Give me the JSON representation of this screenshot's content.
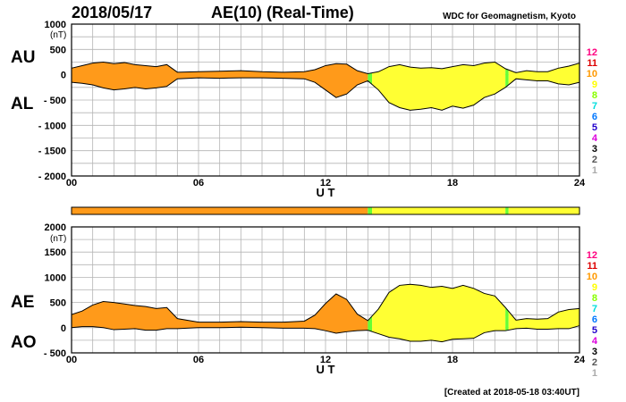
{
  "header": {
    "date": "2018/05/17",
    "title": "AE(10) (Real-Time)",
    "org": "WDC for Geomagnetism, Kyoto"
  },
  "footer": "[Created at 2018-05-18 03:40UT]",
  "colors": {
    "fill_orange": "#ff9a1a",
    "fill_yellow": "#ffff33",
    "fill_green": "#66ff33",
    "grid": "#b4b4b4",
    "trace": "#000000"
  },
  "legend": {
    "labels": [
      "12",
      "11",
      "10",
      "9",
      "8",
      "7",
      "6",
      "5",
      "4",
      "3",
      "2",
      "1"
    ],
    "colors": [
      "#ff0080",
      "#dd0000",
      "#ff9900",
      "#ffff00",
      "#88ff00",
      "#00dddd",
      "#0077ff",
      "#2200cc",
      "#dd00dd",
      "#000000",
      "#555555",
      "#aaaaaa"
    ]
  },
  "chart_data": [
    {
      "type": "area",
      "title": "AU / AL",
      "series_labels": [
        "AU",
        "AL"
      ],
      "unit": "(nT)",
      "xlabel": "U T",
      "xlim": [
        0,
        24
      ],
      "ylim": [
        -2000,
        1000
      ],
      "x_ticks": [
        "00",
        "06",
        "12",
        "18",
        "24"
      ],
      "y_ticks": [
        "1000",
        "500",
        "0",
        "- 500",
        "- 1000",
        "- 1500",
        "- 2000"
      ],
      "x": [
        0,
        0.5,
        1,
        1.5,
        2,
        2.5,
        3,
        3.5,
        4,
        4.5,
        5,
        6,
        7,
        8,
        9,
        10,
        11,
        11.5,
        12,
        12.5,
        13,
        13.5,
        14,
        14.5,
        15,
        15.5,
        16,
        16.5,
        17,
        17.5,
        18,
        18.5,
        19,
        19.5,
        20,
        20.5,
        21,
        21.5,
        22,
        22.5,
        23,
        23.5,
        24
      ],
      "AU": [
        130,
        180,
        230,
        250,
        220,
        240,
        200,
        180,
        160,
        200,
        50,
        60,
        70,
        80,
        60,
        50,
        60,
        100,
        180,
        220,
        210,
        80,
        20,
        60,
        160,
        200,
        150,
        130,
        140,
        120,
        160,
        200,
        180,
        230,
        250,
        120,
        40,
        80,
        60,
        60,
        130,
        170,
        230
      ],
      "AL": [
        -150,
        -170,
        -200,
        -260,
        -300,
        -280,
        -250,
        -280,
        -260,
        -230,
        -80,
        -60,
        -70,
        -60,
        -60,
        -70,
        -80,
        -150,
        -300,
        -450,
        -380,
        -200,
        -120,
        -300,
        -550,
        -650,
        -700,
        -680,
        -650,
        -700,
        -620,
        -660,
        -600,
        -450,
        -380,
        -250,
        -80,
        -100,
        -120,
        -120,
        -180,
        -200,
        -150
      ],
      "source_bar": [
        {
          "from": 0,
          "to": 14,
          "level": "10"
        },
        {
          "from": 14,
          "to": 14.2,
          "level": "8"
        },
        {
          "from": 14.2,
          "to": 20.5,
          "level": "9"
        },
        {
          "from": 20.5,
          "to": 20.65,
          "level": "8"
        },
        {
          "from": 20.65,
          "to": 24,
          "level": "9"
        }
      ]
    },
    {
      "type": "area",
      "title": "AE / AO",
      "series_labels": [
        "AE",
        "AO"
      ],
      "unit": "(nT)",
      "xlabel": "U T",
      "xlim": [
        0,
        24
      ],
      "ylim": [
        -500,
        2000
      ],
      "x_ticks": [
        "00",
        "06",
        "12",
        "18",
        "24"
      ],
      "y_ticks": [
        "2000",
        "1500",
        "1000",
        "500",
        "0",
        "- 500"
      ],
      "x": [
        0,
        0.5,
        1,
        1.5,
        2,
        2.5,
        3,
        3.5,
        4,
        4.5,
        5,
        6,
        7,
        8,
        9,
        10,
        11,
        11.5,
        12,
        12.5,
        13,
        13.5,
        14,
        14.5,
        15,
        15.5,
        16,
        16.5,
        17,
        17.5,
        18,
        18.5,
        19,
        19.5,
        20,
        20.5,
        21,
        21.5,
        22,
        22.5,
        23,
        23.5,
        24
      ],
      "AE": [
        260,
        330,
        450,
        520,
        500,
        470,
        440,
        420,
        380,
        400,
        180,
        110,
        110,
        120,
        110,
        110,
        130,
        250,
        480,
        670,
        560,
        270,
        140,
        370,
        700,
        840,
        860,
        840,
        800,
        820,
        780,
        840,
        780,
        680,
        630,
        400,
        150,
        180,
        170,
        180,
        310,
        360,
        380
      ],
      "AO": [
        0,
        20,
        20,
        0,
        -40,
        -30,
        -20,
        -50,
        -50,
        -20,
        -20,
        0,
        0,
        10,
        0,
        -10,
        -10,
        -20,
        -60,
        -110,
        -80,
        -60,
        -50,
        -120,
        -190,
        -220,
        -270,
        -270,
        -250,
        -280,
        -230,
        -220,
        -210,
        -100,
        -60,
        -60,
        -20,
        -10,
        -30,
        -30,
        -20,
        -20,
        40
      ]
    }
  ]
}
